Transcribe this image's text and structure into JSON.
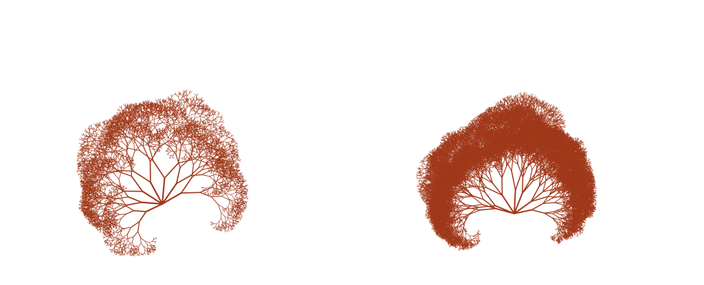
{
  "figure": {
    "background_color": "#ffffff",
    "branch_color": "#a0391b",
    "panels": [
      {
        "id": "left",
        "name": "sparse-fractal-tree",
        "description_name": "fractal-tree-sparse",
        "depth": 11,
        "seed": 7,
        "branch_angle_deg": 26,
        "length_ratio": 0.78,
        "jitter": 0.35,
        "density": "sparse"
      },
      {
        "id": "right",
        "name": "dense-fractal-tree",
        "description_name": "fractal-tree-dense",
        "depth": 12,
        "seed": 19,
        "branch_angle_deg": 22,
        "length_ratio": 0.8,
        "jitter": 0.55,
        "density": "dense"
      }
    ]
  }
}
